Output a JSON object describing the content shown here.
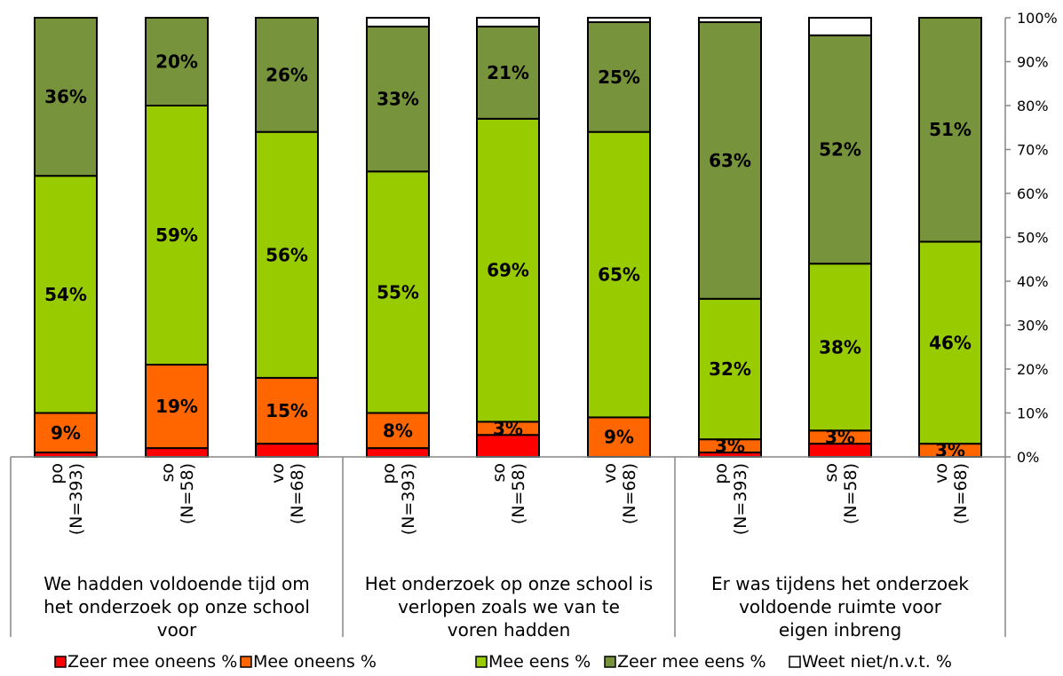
{
  "chart_data": {
    "type": "bar",
    "stacked": true,
    "orientation": "vertical",
    "y_axis_side": "right",
    "ylim": [
      0,
      100
    ],
    "y_ticks": [
      "0%",
      "10%",
      "20%",
      "30%",
      "40%",
      "50%",
      "60%",
      "70%",
      "80%",
      "90%",
      "100%"
    ],
    "grid": false,
    "legend_position": "bottom",
    "groups": [
      "We hadden voldoende tijd om het onderzoek op onze school voor te bereiden",
      "Het onderzoek op onze school is verlopen zoals we van te voren hadden verwacht",
      "Er was tijdens het onderzoek voldoende ruimte voor eigen inbreng"
    ],
    "categories": [
      {
        "group": 0,
        "line1": "po",
        "line2": "(N=393)"
      },
      {
        "group": 0,
        "line1": "so",
        "line2": "(N=58)"
      },
      {
        "group": 0,
        "line1": "vo",
        "line2": "(N=68)"
      },
      {
        "group": 1,
        "line1": "po",
        "line2": "(N=393)"
      },
      {
        "group": 1,
        "line1": "so",
        "line2": "(N=58)"
      },
      {
        "group": 1,
        "line1": "vo",
        "line2": "(N=68)"
      },
      {
        "group": 2,
        "line1": "po",
        "line2": "(N=393)"
      },
      {
        "group": 2,
        "line1": "so",
        "line2": "(N=58)"
      },
      {
        "group": 2,
        "line1": "vo",
        "line2": "(N=68)"
      }
    ],
    "series": [
      {
        "name": "Zeer mee oneens %",
        "color": "#ff0000",
        "values": [
          1,
          2,
          3,
          2,
          5,
          0,
          1,
          3,
          0
        ],
        "labels": [
          "",
          "",
          "",
          "",
          "",
          "",
          "",
          "",
          ""
        ]
      },
      {
        "name": "Mee oneens %",
        "color": "#ff6600",
        "values": [
          9,
          19,
          15,
          8,
          3,
          9,
          3,
          3,
          3
        ],
        "labels": [
          "9%",
          "19%",
          "15%",
          "8%",
          "3%",
          "9%",
          "3%",
          "3%",
          "3%"
        ]
      },
      {
        "name": "Mee eens %",
        "color": "#99cc00",
        "values": [
          54,
          59,
          56,
          55,
          69,
          65,
          32,
          38,
          46
        ],
        "labels": [
          "54%",
          "59%",
          "56%",
          "55%",
          "69%",
          "65%",
          "32%",
          "38%",
          "46%"
        ]
      },
      {
        "name": "Zeer mee eens %",
        "color": "#77933c",
        "values": [
          36,
          20,
          26,
          33,
          21,
          25,
          63,
          52,
          51
        ],
        "labels": [
          "36%",
          "20%",
          "26%",
          "33%",
          "21%",
          "25%",
          "63%",
          "52%",
          "51%"
        ]
      },
      {
        "name": "Weet niet/n.v.t. %",
        "color": "#ffffff",
        "values": [
          0,
          0,
          0,
          2,
          2,
          1,
          1,
          4,
          0
        ],
        "labels": [
          "",
          "",
          "",
          "",
          "",
          "",
          "",
          "",
          ""
        ]
      }
    ]
  }
}
